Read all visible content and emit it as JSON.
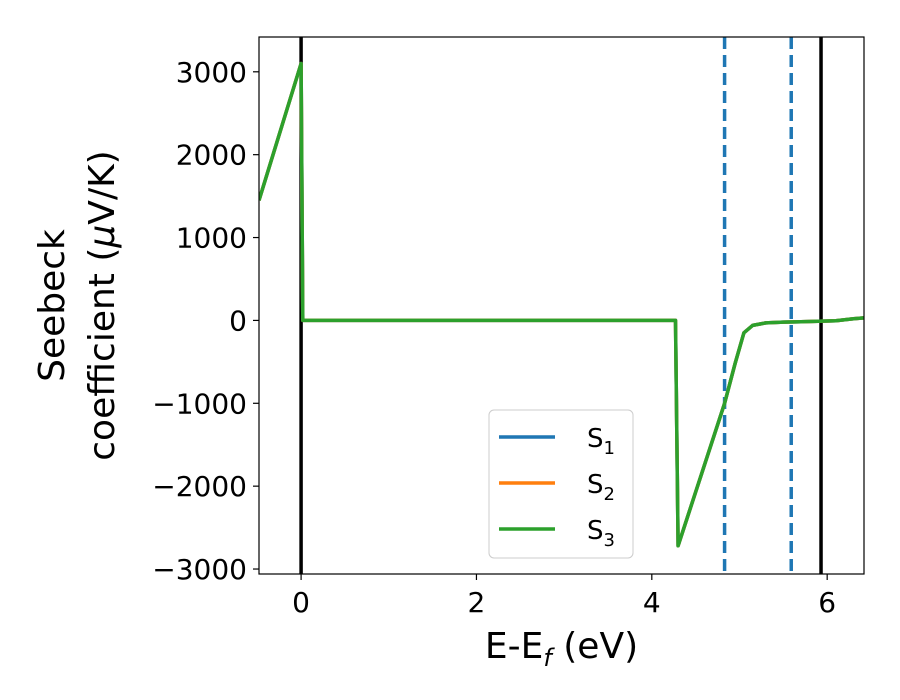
{
  "chart_data": {
    "type": "line",
    "xlabel": {
      "main": "E-E",
      "sub": "f",
      "suffix": " (eV)"
    },
    "ylabel": {
      "line1": "Seebeck",
      "line2_pre": "coefficient  (",
      "line2_mu": "μ",
      "line2_post": "V/K)"
    },
    "xlim": [
      -0.48,
      6.42
    ],
    "ylim": [
      -3060,
      3420
    ],
    "xticks": [
      0,
      2,
      4,
      6
    ],
    "xtick_labels": [
      "0",
      "2",
      "4",
      "6"
    ],
    "yticks": [
      -3000,
      -2000,
      -1000,
      0,
      1000,
      2000,
      3000
    ],
    "ytick_labels": [
      "−3000",
      "−2000",
      "−1000",
      "0",
      "1000",
      "2000",
      "3000"
    ],
    "grid": false,
    "legend_position": "lower-center",
    "series": [
      {
        "name": "S",
        "sub": "1",
        "color": "#1f77b4",
        "x": [
          -0.48,
          0.0,
          0.02,
          4.27,
          4.27,
          4.3,
          4.83,
          4.95,
          5.05,
          5.15,
          5.3,
          5.5,
          5.7,
          5.9,
          6.1,
          6.3,
          6.42
        ],
        "y": [
          1450,
          3100,
          0,
          0,
          0,
          -2720,
          -1000,
          -520,
          -150,
          -60,
          -30,
          -20,
          -15,
          -10,
          -5,
          20,
          30
        ]
      },
      {
        "name": "S",
        "sub": "2",
        "color": "#ff7f0e",
        "x": [
          -0.48,
          0.0,
          0.02,
          4.27,
          4.27,
          4.3,
          4.83,
          4.95,
          5.05,
          5.15,
          5.3,
          5.5,
          5.7,
          5.9,
          6.1,
          6.3,
          6.42
        ],
        "y": [
          1450,
          3100,
          0,
          0,
          0,
          -2720,
          -1000,
          -520,
          -150,
          -60,
          -30,
          -20,
          -15,
          -10,
          -5,
          20,
          30
        ]
      },
      {
        "name": "S",
        "sub": "3",
        "color": "#2ca02c",
        "x": [
          -0.48,
          0.0,
          0.02,
          4.27,
          4.27,
          4.3,
          4.83,
          4.95,
          5.05,
          5.15,
          5.3,
          5.5,
          5.7,
          5.9,
          6.1,
          6.3,
          6.42
        ],
        "y": [
          1450,
          3100,
          0,
          0,
          0,
          -2720,
          -1000,
          -520,
          -150,
          -60,
          -30,
          -20,
          -15,
          -10,
          -5,
          20,
          30
        ]
      }
    ],
    "vlines": [
      {
        "x": 0.0,
        "color": "#000000",
        "style": "solid"
      },
      {
        "x": 4.83,
        "color": "#1f77b4",
        "style": "dashed"
      },
      {
        "x": 5.59,
        "color": "#1f77b4",
        "style": "dashed"
      },
      {
        "x": 5.93,
        "color": "#000000",
        "style": "solid"
      }
    ]
  }
}
